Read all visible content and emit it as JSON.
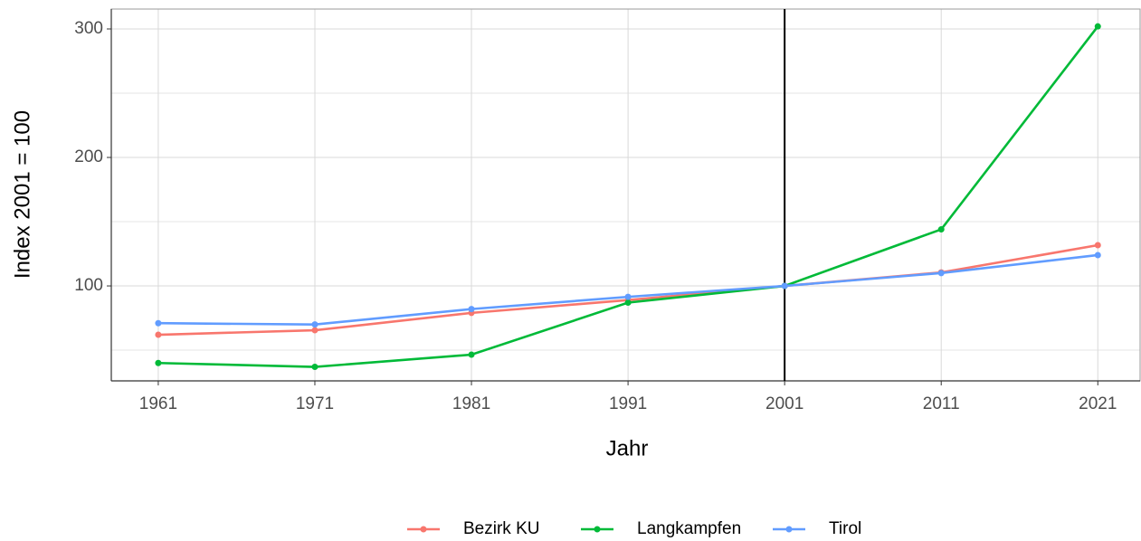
{
  "chart_data": {
    "type": "line",
    "x_label": "Jahr",
    "y_label": "Index 2001 = 100",
    "x": [
      1961,
      1971,
      1981,
      1991,
      2001,
      2011,
      2021
    ],
    "series": [
      {
        "name": "Bezirk KU",
        "color": "#F8766D",
        "values": [
          62,
          65.5,
          79,
          89,
          100,
          110.5,
          131.7
        ]
      },
      {
        "name": "Langkampfen",
        "color": "#00BA38",
        "values": [
          40,
          37,
          46.5,
          87,
          100,
          144,
          302
        ]
      },
      {
        "name": "Tirol",
        "color": "#619CFF",
        "values": [
          71,
          70,
          82,
          91.5,
          100,
          110,
          124
        ]
      }
    ],
    "xlim": [
      1958,
      2023.7
    ],
    "xticks": [
      1961,
      1971,
      1981,
      1991,
      2001,
      2011,
      2021
    ],
    "ylim": [
      26.1,
      315.5
    ],
    "yticks": [
      100,
      200,
      300
    ],
    "y_minor_ticks": [
      50,
      150,
      250
    ],
    "vline": 2001,
    "grid": true,
    "legend": "bottom"
  }
}
